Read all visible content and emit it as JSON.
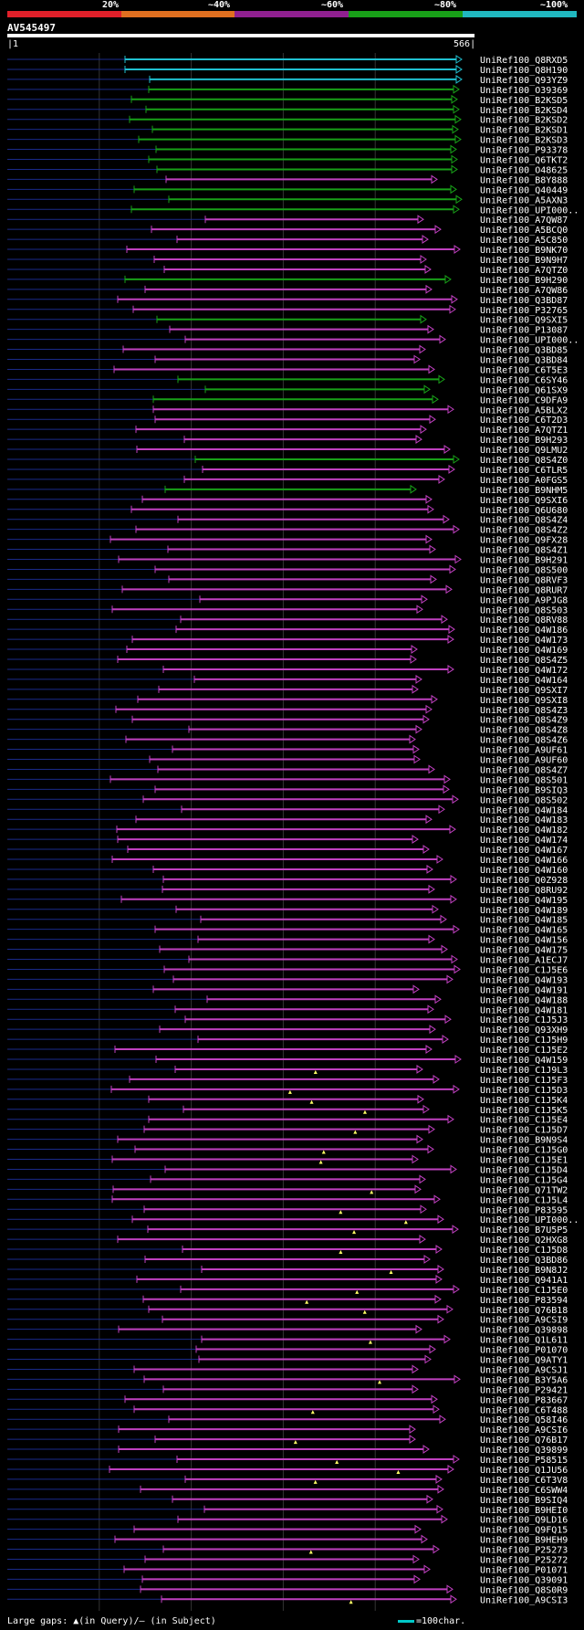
{
  "query": {
    "name": "AV545497",
    "start": "1",
    "end": "566"
  },
  "scale": {
    "labels": [
      "20%",
      "~40%",
      "~60%",
      "~80%",
      "~100%"
    ],
    "colors": [
      "#e0202a",
      "#e07020",
      "#902090",
      "#18a018",
      "#20b8c0"
    ]
  },
  "legend": {
    "text": "Large gaps: ▲(in Query)/– (in Subject)",
    "right": "=100char."
  },
  "hits": [
    "UniRef100_Q8RXD5",
    "UniRef100_Q8H190",
    "UniRef100_Q93YZ9",
    "UniRef100_O39369",
    "UniRef100_B2KSD5",
    "UniRef100_B2KSD4",
    "UniRef100_B2KSD2",
    "UniRef100_B2KSD1",
    "UniRef100_B2KSD3",
    "UniRef100_P93378",
    "UniRef100_Q6TKT2",
    "UniRef100_O48625",
    "UniRef100_B8Y888",
    "UniRef100_Q40449",
    "UniRef100_A5AXN3",
    "UniRef100_UPI000..",
    "UniRef100_A7QW87",
    "UniRef100_A5BCQ0",
    "UniRef100_A5C850",
    "UniRef100_B9NK70",
    "UniRef100_B9N9H7",
    "UniRef100_A7QTZ0",
    "UniRef100_B9H290",
    "UniRef100_A7QW86",
    "UniRef100_Q3BD87",
    "UniRef100_P32765",
    "UniRef100_Q9SXI5",
    "UniRef100_P13087",
    "UniRef100_UPI000..",
    "UniRef100_Q3BD85",
    "UniRef100_Q3BD84",
    "UniRef100_C6T5E3",
    "UniRef100_C6SY46",
    "UniRef100_Q61SX9",
    "UniRef100_C9DFA9",
    "UniRef100_A5BLX2",
    "UniRef100_C6T2D3",
    "UniRef100_A7QTZ1",
    "UniRef100_B9H293",
    "UniRef100_Q9LMU2",
    "UniRef100_Q8S4Z0",
    "UniRef100_C6TLR5",
    "UniRef100_A0FGS5",
    "UniRef100_B9NHM5",
    "UniRef100_Q9SXI6",
    "UniRef100_Q6U680",
    "UniRef100_Q8S4Z4",
    "UniRef100_Q8S4Z2",
    "UniRef100_Q9FX28",
    "UniRef100_Q8S4Z1",
    "UniRef100_B9H291",
    "UniRef100_Q8S500",
    "UniRef100_Q8RVF3",
    "UniRef100_Q8RUR7",
    "UniRef100_A9PJG8",
    "UniRef100_Q8S503",
    "UniRef100_Q8RV88",
    "UniRef100_Q4W186",
    "UniRef100_Q4W173",
    "UniRef100_Q4W169",
    "UniRef100_Q8S4Z5",
    "UniRef100_Q4W172",
    "UniRef100_Q4W164",
    "UniRef100_Q9SXI7",
    "UniRef100_Q9SXI8",
    "UniRef100_Q8S4Z3",
    "UniRef100_Q8S4Z9",
    "UniRef100_Q8S4Z8",
    "UniRef100_Q8S4Z6",
    "UniRef100_A9UF61",
    "UniRef100_A9UF60",
    "UniRef100_Q8S4Z7",
    "UniRef100_Q8S501",
    "UniRef100_B9SIQ3",
    "UniRef100_Q8S502",
    "UniRef100_Q4W184",
    "UniRef100_Q4W183",
    "UniRef100_Q4W182",
    "UniRef100_Q4W174",
    "UniRef100_Q4W167",
    "UniRef100_Q4W166",
    "UniRef100_Q4W160",
    "UniRef100_Q0Z928",
    "UniRef100_Q8RU92",
    "UniRef100_Q4W195",
    "UniRef100_Q4W189",
    "UniRef100_Q4W185",
    "UniRef100_Q4W165",
    "UniRef100_Q4W156",
    "UniRef100_Q4W175",
    "UniRef100_A1ECJ7",
    "UniRef100_C1J5E6",
    "UniRef100_Q4W193",
    "UniRef100_Q4W191",
    "UniRef100_Q4W188",
    "UniRef100_Q4W181",
    "UniRef100_C1J5J3",
    "UniRef100_Q93XH9",
    "UniRef100_C1J5H9",
    "UniRef100_C1J5E2",
    "UniRef100_Q4W159",
    "UniRef100_C1J9L3",
    "UniRef100_C1J5F3",
    "UniRef100_C1J5D3",
    "UniRef100_C1J5K4",
    "UniRef100_C1J5K5",
    "UniRef100_C1J5E4",
    "UniRef100_C1J5D7",
    "UniRef100_B9N9S4",
    "UniRef100_C1J5G0",
    "UniRef100_C1J5E1",
    "UniRef100_C1J5D4",
    "UniRef100_C1J5G4",
    "UniRef100_Q71TW2",
    "UniRef100_C1J5L4",
    "UniRef100_P83595",
    "UniRef100_UPI000..",
    "UniRef100_B7U5P5",
    "UniRef100_Q2HXG8",
    "UniRef100_C1J5D8",
    "UniRef100_Q3BD86",
    "UniRef100_B9N8J2",
    "UniRef100_Q941A1",
    "UniRef100_C1J5E0",
    "UniRef100_P83594",
    "UniRef100_Q76B18",
    "UniRef100_A9CSI9",
    "UniRef100_Q39898",
    "UniRef100_Q1L611",
    "UniRef100_P01070",
    "UniRef100_Q9ATY1",
    "UniRef100_A9CSJ1",
    "UniRef100_B3Y5A6",
    "UniRef100_P29421",
    "UniRef100_P83667",
    "UniRef100_C6T488",
    "UniRef100_Q58I46",
    "UniRef100_A9CSI6",
    "UniRef100_Q76B17",
    "UniRef100_Q39899",
    "UniRef100_P58515",
    "UniRef100_Q1JU56",
    "UniRef100_C6T3V8",
    "UniRef100_C6SWW4",
    "UniRef100_B9SIQ4",
    "UniRef100_B9HEI0",
    "UniRef100_Q9LD16",
    "UniRef100_Q9FQ15",
    "UniRef100_B9HEH9",
    "UniRef100_P25273",
    "UniRef100_P25272",
    "UniRef100_P01071",
    "UniRef100_Q39091",
    "UniRef100_Q8S0R9",
    "UniRef100_A9CSI3"
  ]
}
